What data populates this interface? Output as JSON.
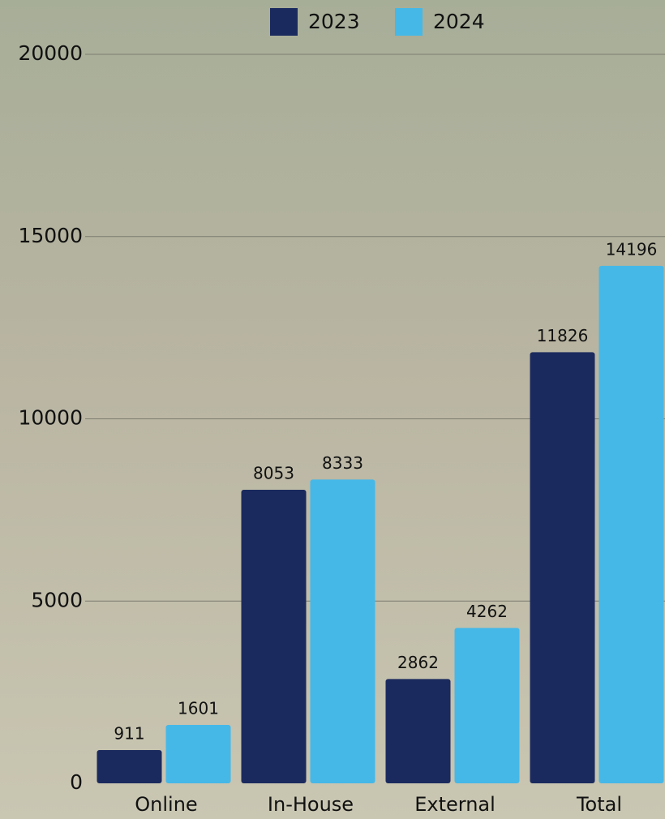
{
  "chart_data": {
    "type": "bar",
    "categories": [
      "Online",
      "In-House",
      "External",
      "Total"
    ],
    "series": [
      {
        "name": "2023",
        "color": "#1b2a5e",
        "values": [
          911,
          8053,
          2862,
          11826
        ]
      },
      {
        "name": "2024",
        "color": "#45b8e8",
        "values": [
          1601,
          8333,
          4262,
          14196
        ]
      }
    ],
    "ylim": [
      0,
      20000
    ],
    "yticks": [
      0,
      5000,
      10000,
      15000,
      20000
    ],
    "grid": true
  }
}
